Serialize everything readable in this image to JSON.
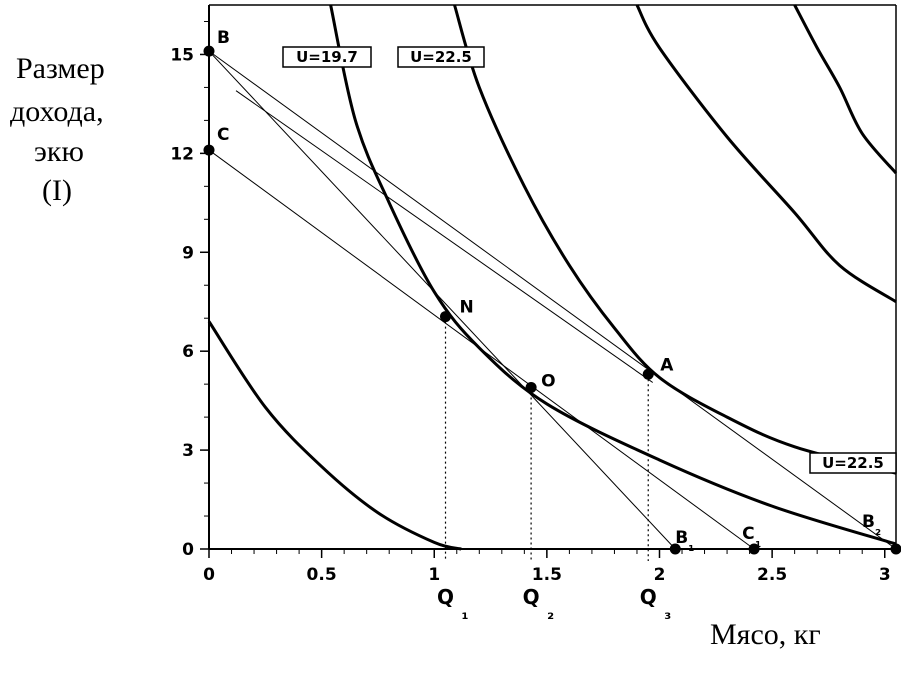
{
  "chart_data": {
    "type": "line",
    "ylabel": [
      "Размер",
      "дохода,",
      "экю",
      "(I)"
    ],
    "xlabel": "Мясо, кг",
    "xlim": [
      0,
      3.05
    ],
    "ylim": [
      0,
      16.5
    ],
    "xticks": [
      "0",
      "0.5",
      "1",
      "1.5",
      "2",
      "2.5",
      "3"
    ],
    "xtick_values": [
      0,
      0.5,
      1,
      1.5,
      2,
      2.5,
      3
    ],
    "yticks": [
      "0",
      "3",
      "6",
      "9",
      "12",
      "15"
    ],
    "ytick_values": [
      0,
      3,
      6,
      9,
      12,
      15
    ],
    "indifference_curves": [
      {
        "points": [
          [
            0,
            6.9
          ],
          [
            0.25,
            4.3
          ],
          [
            0.5,
            2.5
          ],
          [
            0.75,
            1.1
          ],
          [
            1.0,
            0.2
          ],
          [
            1.12,
            0
          ]
        ]
      },
      {
        "points": [
          [
            0.54,
            16.5
          ],
          [
            0.65,
            13.0
          ],
          [
            0.8,
            10.5
          ],
          [
            1.0,
            7.8
          ],
          [
            1.2,
            6.1
          ],
          [
            1.5,
            4.4
          ],
          [
            2.0,
            2.7
          ],
          [
            2.5,
            1.3
          ],
          [
            3.05,
            0.15
          ]
        ]
      },
      {
        "points": [
          [
            1.09,
            16.5
          ],
          [
            1.2,
            14.0
          ],
          [
            1.4,
            11.0
          ],
          [
            1.6,
            8.6
          ],
          [
            1.8,
            6.7
          ],
          [
            2.0,
            5.2
          ],
          [
            2.3,
            4.0
          ],
          [
            2.6,
            3.1
          ],
          [
            3.05,
            2.3
          ]
        ]
      },
      {
        "points": [
          [
            1.9,
            16.5
          ],
          [
            2.0,
            15.2
          ],
          [
            2.3,
            12.5
          ],
          [
            2.6,
            10.2
          ],
          [
            2.8,
            8.6
          ],
          [
            3.05,
            7.5
          ]
        ]
      },
      {
        "points": [
          [
            2.6,
            16.5
          ],
          [
            2.7,
            15.2
          ],
          [
            2.8,
            14.0
          ],
          [
            2.9,
            12.6
          ],
          [
            3.05,
            11.4
          ]
        ]
      }
    ],
    "budget_lines": [
      {
        "from": [
          0,
          15.1
        ],
        "to": [
          3.05,
          0
        ]
      },
      {
        "from": [
          0,
          15.1
        ],
        "to": [
          2.07,
          0
        ]
      },
      {
        "from": [
          0,
          12.1
        ],
        "to": [
          2.42,
          0
        ]
      },
      {
        "from": [
          0.12,
          13.9
        ],
        "to": [
          1.97,
          5.05
        ]
      }
    ],
    "points": [
      {
        "label": "B",
        "x": 0,
        "y": 15.1
      },
      {
        "label": "C",
        "x": 0,
        "y": 12.1
      },
      {
        "label": "N",
        "x": 1.05,
        "y": 7.05
      },
      {
        "label": "O",
        "x": 1.43,
        "y": 4.9
      },
      {
        "label": "A",
        "x": 1.95,
        "y": 5.3
      },
      {
        "label": "B₁",
        "x": 2.07,
        "y": 0
      },
      {
        "label": "C₁",
        "x": 2.42,
        "y": 0
      },
      {
        "label": "B₂",
        "x": 3.05,
        "y": 0
      }
    ],
    "dropdowns": [
      {
        "label": "Q₁",
        "x": 1.05,
        "y": 7.05
      },
      {
        "label": "Q₂",
        "x": 1.43,
        "y": 4.9
      },
      {
        "label": "Q₃",
        "x": 1.95,
        "y": 5.3
      }
    ],
    "annotations": [
      "U=19.7",
      "U=22.5",
      "U=22.5"
    ]
  }
}
